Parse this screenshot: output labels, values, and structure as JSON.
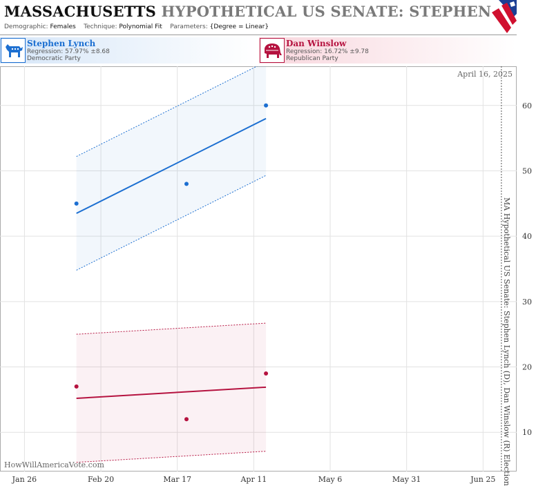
{
  "header": {
    "state": "MASSACHUSETTS",
    "title_rest": "HYPOTHETICAL US SENATE: STEPHEN LYNCH",
    "demographic_label": "Demographic:",
    "demographic": "Females",
    "technique_label": "Technique:",
    "technique": "Polynomial Fit",
    "parameters_label": "Parameters:",
    "parameters": "{Degree = Linear}"
  },
  "candidates": [
    {
      "name": "Stephen Lynch",
      "regression": "Regression: 57.97% ±8.68",
      "party": "Democratic Party",
      "color": "#1c6fd1",
      "icon": "donkey-icon"
    },
    {
      "name": "Dan Winslow",
      "regression": "Regression: 16.72% ±9.78",
      "party": "Republican Party",
      "color": "#b5123f",
      "icon": "elephant-icon"
    }
  ],
  "chart_data": {
    "type": "scatter",
    "date_label": "April 16, 2025",
    "side_title": "MA Hypothetical US Senate: Stephen Lynch (D), Dan Winslow (R) Election",
    "watermark": "HowWillAmericaVote.com",
    "x_ticks": [
      "Jan 26",
      "Feb 20",
      "Mar 17",
      "Apr 11",
      "May 6",
      "May 31",
      "Jun 25"
    ],
    "y_ticks": [
      10,
      20,
      30,
      40,
      50,
      60
    ],
    "ylim": [
      4,
      66
    ],
    "xlim": [
      "2025-01-18",
      "2025-07-06"
    ],
    "election_date": "2025-07-06",
    "grid": true,
    "series": [
      {
        "name": "Stephen Lynch",
        "color": "#1c6fd1",
        "points": [
          {
            "x": "2025-02-12",
            "y": 45
          },
          {
            "x": "2025-03-20",
            "y": 48
          },
          {
            "x": "2025-04-15",
            "y": 60
          }
        ],
        "fit": {
          "x": [
            "2025-02-12",
            "2025-04-15"
          ],
          "y": [
            43.5,
            58
          ],
          "upper": [
            52.2,
            66.7
          ],
          "lower": [
            34.8,
            49.3
          ]
        }
      },
      {
        "name": "Dan Winslow",
        "color": "#b5123f",
        "points": [
          {
            "x": "2025-02-12",
            "y": 17
          },
          {
            "x": "2025-03-20",
            "y": 12
          },
          {
            "x": "2025-04-15",
            "y": 19
          }
        ],
        "fit": {
          "x": [
            "2025-02-12",
            "2025-04-15"
          ],
          "y": [
            15.2,
            16.9
          ],
          "upper": [
            25,
            26.7
          ],
          "lower": [
            5.4,
            7.1
          ]
        }
      }
    ]
  }
}
